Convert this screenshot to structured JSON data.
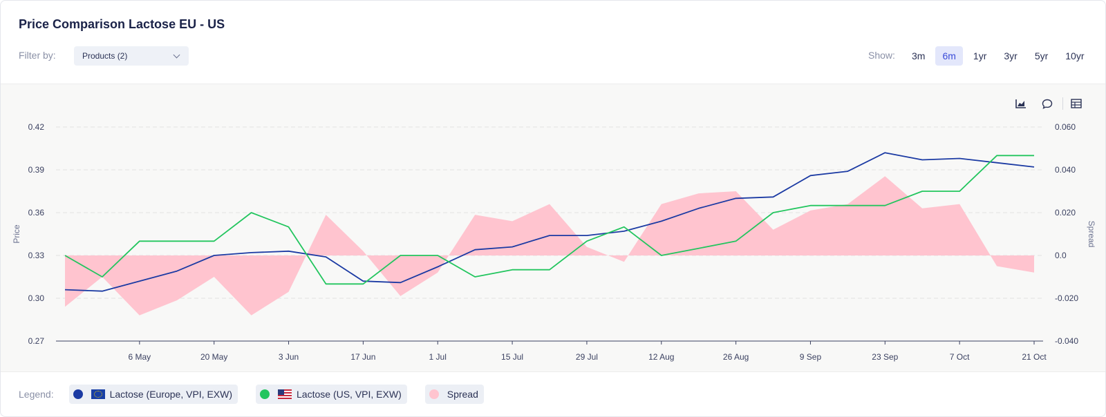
{
  "header": {
    "title": "Price Comparison Lactose EU - US"
  },
  "filter": {
    "label": "Filter by:",
    "value": "Products (2)"
  },
  "show": {
    "label": "Show:",
    "options": [
      "3m",
      "6m",
      "1yr",
      "3yr",
      "5yr",
      "10yr"
    ],
    "active": "6m"
  },
  "tools": [
    "chart-area-icon",
    "comment-icon",
    "table-icon"
  ],
  "legend": {
    "label": "Legend:",
    "items": [
      {
        "name": "Lactose (Europe, VPI, EXW)",
        "color": "#1b3aa3",
        "flag": "eu-flag-icon"
      },
      {
        "name": "Lactose (US, VPI, EXW)",
        "color": "#22c55e",
        "flag": "us-flag-icon"
      },
      {
        "name": "Spread",
        "color": "#ffc4cf"
      }
    ]
  },
  "chart_data": {
    "type": "line",
    "ylabel": "Price",
    "y2label": "Spread",
    "ylim": [
      0.27,
      0.42
    ],
    "y2lim": [
      -0.04,
      0.06
    ],
    "yticks": [
      "0.27",
      "0.30",
      "0.33",
      "0.36",
      "0.39",
      "0.42"
    ],
    "y2ticks": [
      "-0.040",
      "-0.020",
      "0.0",
      "0.020",
      "0.040",
      "0.060"
    ],
    "xticks": [
      "6 May",
      "20 May",
      "3 Jun",
      "17 Jun",
      "1 Jul",
      "15 Jul",
      "29 Jul",
      "12 Aug",
      "26 Aug",
      "9 Sep",
      "23 Sep",
      "7 Oct",
      "21 Oct"
    ],
    "x": [
      "22 Apr",
      "29 Apr",
      "6 May",
      "13 May",
      "20 May",
      "27 May",
      "3 Jun",
      "10 Jun",
      "17 Jun",
      "24 Jun",
      "1 Jul",
      "8 Jul",
      "15 Jul",
      "22 Jul",
      "29 Jul",
      "5 Aug",
      "12 Aug",
      "19 Aug",
      "26 Aug",
      "2 Sep",
      "9 Sep",
      "16 Sep",
      "23 Sep",
      "30 Sep",
      "7 Oct",
      "14 Oct",
      "21 Oct"
    ],
    "series": [
      {
        "name": "Lactose (Europe, VPI, EXW)",
        "axis": "left",
        "color": "#1b3aa3",
        "values": [
          0.306,
          0.305,
          0.312,
          0.319,
          0.33,
          0.332,
          0.333,
          0.329,
          0.312,
          0.311,
          0.322,
          0.334,
          0.336,
          0.344,
          0.344,
          0.347,
          0.354,
          0.363,
          0.37,
          0.371,
          0.386,
          0.389,
          0.402,
          0.397,
          0.398,
          0.395,
          0.392
        ]
      },
      {
        "name": "Lactose (US, VPI, EXW)",
        "axis": "left",
        "color": "#22c55e",
        "values": [
          0.33,
          0.315,
          0.34,
          0.34,
          0.34,
          0.36,
          0.35,
          0.31,
          0.31,
          0.33,
          0.33,
          0.315,
          0.32,
          0.32,
          0.34,
          0.35,
          0.33,
          0.335,
          0.34,
          0.36,
          0.365,
          0.365,
          0.365,
          0.375,
          0.375,
          0.4,
          0.4
        ]
      },
      {
        "name": "Spread",
        "axis": "right",
        "color": "#ffc4cf",
        "values": [
          -0.024,
          -0.01,
          -0.028,
          -0.021,
          -0.01,
          -0.028,
          -0.017,
          0.019,
          0.002,
          -0.019,
          -0.008,
          0.019,
          0.016,
          0.024,
          0.004,
          -0.003,
          0.024,
          0.029,
          0.03,
          0.012,
          0.021,
          0.024,
          0.037,
          0.022,
          0.024,
          -0.005,
          -0.008
        ]
      }
    ],
    "grid": true,
    "legend_position": "bottom"
  }
}
